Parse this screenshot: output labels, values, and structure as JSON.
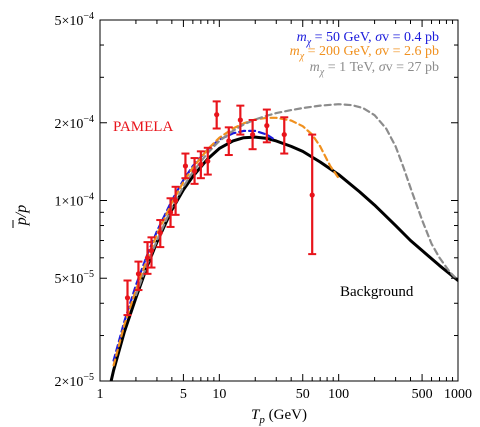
{
  "chart_data": {
    "type": "line",
    "title": "",
    "xlabel": "T_p (GeV)",
    "ylabel": "p̄/p",
    "xscale": "log",
    "yscale": "log",
    "xlim": [
      1,
      1000
    ],
    "ylim": [
      2e-05,
      0.0005
    ],
    "grid": false,
    "legend_position": "top-right",
    "x_ticks": [
      {
        "value": 1,
        "label": "1"
      },
      {
        "value": 5,
        "label": "5"
      },
      {
        "value": 10,
        "label": "10"
      },
      {
        "value": 50,
        "label": "50"
      },
      {
        "value": 100,
        "label": "100"
      },
      {
        "value": 500,
        "label": "500"
      },
      {
        "value": 1000,
        "label": "1000"
      }
    ],
    "y_ticks": [
      {
        "value": 2e-05,
        "mant": "2",
        "exp": "−5"
      },
      {
        "value": 5e-05,
        "mant": "5",
        "exp": "−5"
      },
      {
        "value": 0.0001,
        "mant": "1",
        "exp": "−4"
      },
      {
        "value": 0.0002,
        "mant": "2",
        "exp": "−4"
      },
      {
        "value": 0.0005,
        "mant": "5",
        "exp": "−4"
      }
    ],
    "series": [
      {
        "name": "Background",
        "style": "solid",
        "color": "#000000",
        "points": [
          [
            1.0,
            1.3e-05
          ],
          [
            1.3,
            2.2e-05
          ],
          [
            1.6,
            3.1e-05
          ],
          [
            2.0,
            4.2e-05
          ],
          [
            2.5,
            5.6e-05
          ],
          [
            3.0,
            6.9e-05
          ],
          [
            4.0,
            9.2e-05
          ],
          [
            5.0,
            0.00011
          ],
          [
            6.0,
            0.000124
          ],
          [
            8.0,
            0.000145
          ],
          [
            10.0,
            0.000159
          ],
          [
            13.0,
            0.00017
          ],
          [
            16.0,
            0.000175
          ],
          [
            20.0,
            0.000176
          ],
          [
            25.0,
            0.000174
          ],
          [
            30.0,
            0.00017
          ],
          [
            40.0,
            0.000162
          ],
          [
            50.0,
            0.000155
          ],
          [
            70.0,
            0.000141
          ],
          [
            100.0,
            0.000126
          ],
          [
            150.0,
            0.000108
          ],
          [
            200.0,
            9.6e-05
          ],
          [
            300.0,
            8e-05
          ],
          [
            400.0,
            7e-05
          ],
          [
            500.0,
            6.4e-05
          ],
          [
            700.0,
            5.6e-05
          ],
          [
            1000.0,
            4.9e-05
          ]
        ]
      },
      {
        "name": "m_χ = 50 GeV, σv = 0.4 pb",
        "style": "dashed",
        "color": "#1a1adb",
        "points": [
          [
            1.3,
            2.4e-05
          ],
          [
            1.6,
            3.4e-05
          ],
          [
            2.0,
            4.7e-05
          ],
          [
            2.5,
            6.2e-05
          ],
          [
            3.0,
            7.6e-05
          ],
          [
            4.0,
            0.0001
          ],
          [
            5.0,
            0.00012
          ],
          [
            6.0,
            0.000136
          ],
          [
            8.0,
            0.000158
          ],
          [
            10.0,
            0.000172
          ],
          [
            13.0,
            0.000182
          ],
          [
            16.0,
            0.000186
          ],
          [
            20.0,
            0.000186
          ],
          [
            25.0,
            0.00018
          ],
          [
            28.0,
            0.000174
          ]
        ]
      },
      {
        "name": "m_χ = 200 GeV, σv = 2.6 pb",
        "style": "dashed",
        "color": "#f0901e",
        "points": [
          [
            1.3,
            2.3e-05
          ],
          [
            1.6,
            3.3e-05
          ],
          [
            2.0,
            4.5e-05
          ],
          [
            2.5,
            6e-05
          ],
          [
            3.0,
            7.4e-05
          ],
          [
            4.0,
            9.8e-05
          ],
          [
            5.0,
            0.000118
          ],
          [
            6.0,
            0.000134
          ],
          [
            8.0,
            0.000158
          ],
          [
            10.0,
            0.000175
          ],
          [
            13.0,
            0.00019
          ],
          [
            16.0,
            0.000199
          ],
          [
            20.0,
            0.000206
          ],
          [
            25.0,
            0.000209
          ],
          [
            30.0,
            0.000209
          ],
          [
            40.0,
            0.000204
          ],
          [
            50.0,
            0.000194
          ],
          [
            60.0,
            0.00018
          ],
          [
            70.0,
            0.000162
          ],
          [
            85.0,
            0.000136
          ],
          [
            100.0,
            0.000122
          ]
        ]
      },
      {
        "name": "m_χ = 1 TeV, σv = 27 pb",
        "style": "dashed",
        "color": "#8c8c8c",
        "points": [
          [
            2.0,
            4.3e-05
          ],
          [
            2.5,
            5.7e-05
          ],
          [
            3.0,
            7e-05
          ],
          [
            4.0,
            9.4e-05
          ],
          [
            5.0,
            0.000113
          ],
          [
            6.0,
            0.000129
          ],
          [
            8.0,
            0.000153
          ],
          [
            10.0,
            0.00017
          ],
          [
            13.0,
            0.000186
          ],
          [
            16.0,
            0.000197
          ],
          [
            20.0,
            0.000206
          ],
          [
            25.0,
            0.000213
          ],
          [
            30.0,
            0.000218
          ],
          [
            40.0,
            0.000224
          ],
          [
            50.0,
            0.000228
          ],
          [
            70.0,
            0.000233
          ],
          [
            100.0,
            0.000236
          ],
          [
            130.0,
            0.000234
          ],
          [
            160.0,
            0.000228
          ],
          [
            200.0,
            0.000214
          ],
          [
            250.0,
            0.00019
          ],
          [
            300.0,
            0.000162
          ],
          [
            350.0,
            0.000134
          ],
          [
            400.0,
            0.000112
          ],
          [
            500.0,
            8.4e-05
          ],
          [
            600.0,
            6.8e-05
          ],
          [
            700.0,
            6e-05
          ],
          [
            850.0,
            5.3e-05
          ],
          [
            1000.0,
            4.9e-05
          ]
        ]
      }
    ],
    "data_points": {
      "name": "PAMELA",
      "color": "#e8141b",
      "points": [
        {
          "x": 1.7,
          "y": 4.2e-05,
          "lo": 3.6e-05,
          "hi": 4.9e-05
        },
        {
          "x": 2.1,
          "y": 5.2e-05,
          "lo": 4.5e-05,
          "hi": 5.8e-05
        },
        {
          "x": 2.5,
          "y": 6e-05,
          "lo": 5.2e-05,
          "hi": 6.9e-05
        },
        {
          "x": 2.7,
          "y": 6.4e-05,
          "lo": 5.5e-05,
          "hi": 7.2e-05
        },
        {
          "x": 3.2,
          "y": 7.5e-05,
          "lo": 6.6e-05,
          "hi": 8.4e-05
        },
        {
          "x": 3.9,
          "y": 9e-05,
          "lo": 7.9e-05,
          "hi": 0.000102
        },
        {
          "x": 4.3,
          "y": 0.0001,
          "lo": 8.8e-05,
          "hi": 0.000113
        },
        {
          "x": 5.2,
          "y": 0.000136,
          "lo": 0.000122,
          "hi": 0.000152
        },
        {
          "x": 6.2,
          "y": 0.00013,
          "lo": 0.000116,
          "hi": 0.000146
        },
        {
          "x": 7.0,
          "y": 0.000138,
          "lo": 0.000122,
          "hi": 0.000155
        },
        {
          "x": 8.0,
          "y": 0.000142,
          "lo": 0.000126,
          "hi": 0.00016
        },
        {
          "x": 9.5,
          "y": 0.000215,
          "lo": 0.00019,
          "hi": 0.000242
        },
        {
          "x": 12.0,
          "y": 0.00017,
          "lo": 0.00015,
          "hi": 0.000192
        },
        {
          "x": 15.0,
          "y": 0.000205,
          "lo": 0.00018,
          "hi": 0.000233
        },
        {
          "x": 19.0,
          "y": 0.00018,
          "lo": 0.000158,
          "hi": 0.000205
        },
        {
          "x": 25.0,
          "y": 0.000195,
          "lo": 0.000168,
          "hi": 0.000225
        },
        {
          "x": 35.0,
          "y": 0.00018,
          "lo": 0.000152,
          "hi": 0.00021
        },
        {
          "x": 60.0,
          "y": 0.000105,
          "lo": 6.2e-05,
          "hi": 0.00018
        }
      ]
    },
    "annotations": [
      {
        "text": "PAMELA",
        "color": "#e8141b"
      },
      {
        "text": "Background",
        "color": "#000000"
      }
    ],
    "legend": [
      {
        "mass_label": "50 GeV",
        "sv_label": "0.4 pb",
        "color": "#1a1adb"
      },
      {
        "mass_label": "200 GeV",
        "sv_label": "2.6 pb",
        "color": "#f0901e"
      },
      {
        "mass_label": "1 TeV",
        "sv_label": "27 pb",
        "color": "#8c8c8c"
      }
    ]
  }
}
